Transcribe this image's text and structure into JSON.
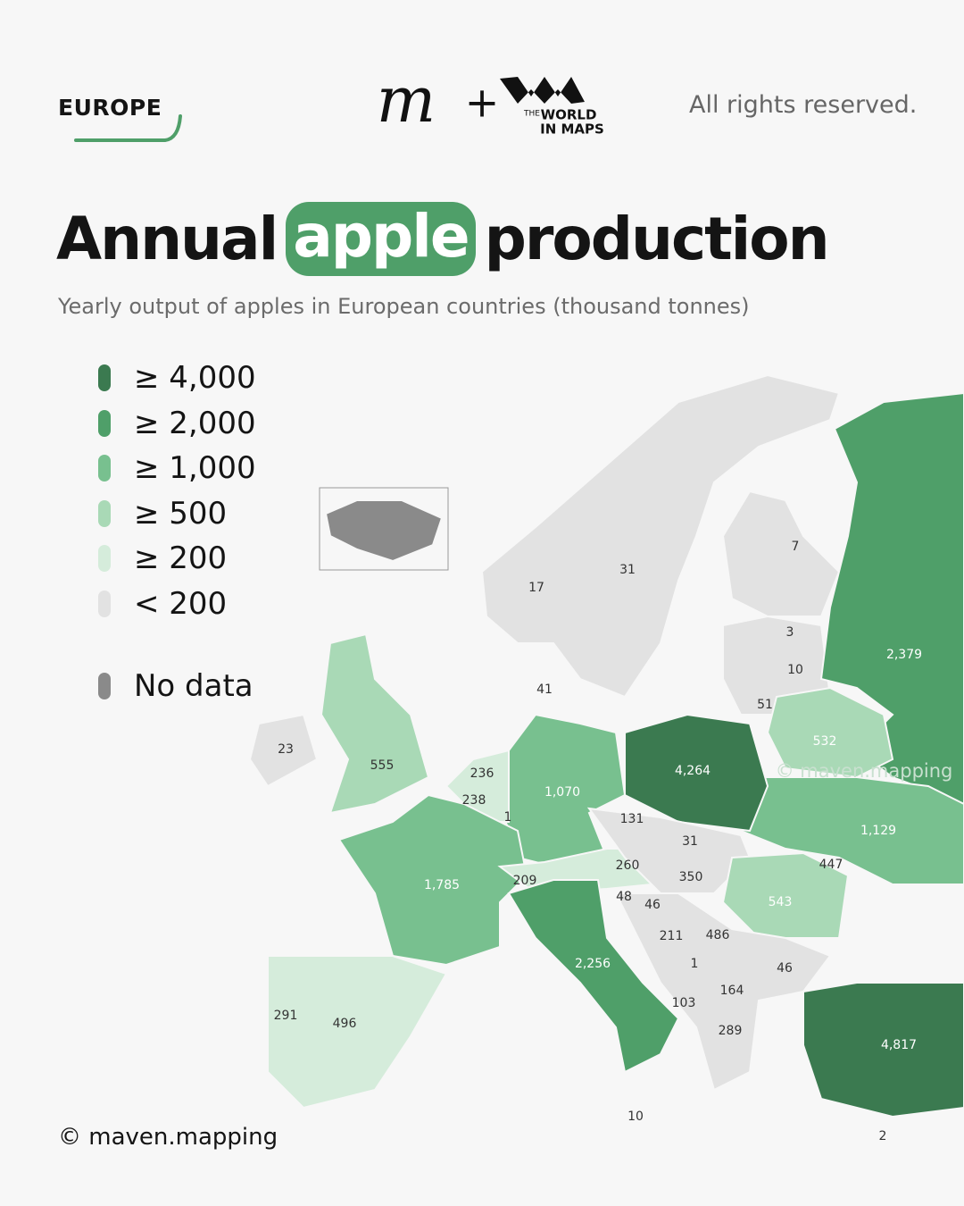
{
  "header": {
    "region": "EUROPE",
    "logo_the": "THE",
    "logo_world": "WORLD",
    "logo_in_maps": "IN MAPS",
    "rights": "All rights reserved."
  },
  "title": {
    "before": "Annual",
    "highlight": "apple",
    "after": "production"
  },
  "subtitle": "Yearly output of apples in European countries (thousand tonnes)",
  "legend": [
    {
      "label": "≥ 4,000",
      "color": "#3b7a50"
    },
    {
      "label": "≥ 2,000",
      "color": "#4f9f69"
    },
    {
      "label": "≥ 1,000",
      "color": "#78c08f"
    },
    {
      "label": "≥ 500",
      "color": "#a9d9b6"
    },
    {
      "label": "≥ 200",
      "color": "#d5ecdb"
    },
    {
      "label": "< 200",
      "color": "#e2e2e2"
    },
    {
      "label": "No data",
      "color": "#8a8a8a"
    }
  ],
  "map": {
    "labels": [
      "17",
      "31",
      "7",
      "3",
      "10",
      "2,379",
      "41",
      "51",
      "23",
      "555",
      "236",
      "238",
      "1",
      "1,070",
      "4,264",
      "532",
      "131",
      "31",
      "1,129",
      "260",
      "350",
      "447",
      "1,785",
      "209",
      "48",
      "46",
      "543",
      "211",
      "486",
      "2,256",
      "1",
      "46",
      "164",
      "103",
      "291",
      "496",
      "289",
      "4,817",
      "10",
      "2"
    ],
    "watermark": "© maven.mapping"
  },
  "footer": "© maven.mapping"
}
